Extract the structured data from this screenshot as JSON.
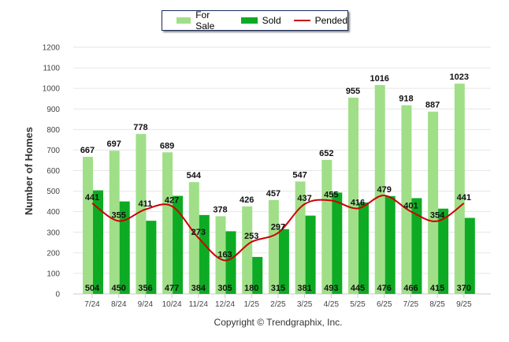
{
  "chart_data": {
    "type": "bar",
    "ylabel": "Number of Homes",
    "xlabel": "",
    "ylim": [
      0,
      1200
    ],
    "yticks": [
      0,
      100,
      200,
      300,
      400,
      500,
      600,
      700,
      800,
      900,
      1000,
      1100,
      1200
    ],
    "grid": true,
    "legend_position": "top-center",
    "categories": [
      "7/24",
      "8/24",
      "9/24",
      "10/24",
      "11/24",
      "12/24",
      "1/25",
      "2/25",
      "3/25",
      "4/25",
      "5/25",
      "6/25",
      "7/25",
      "8/25",
      "9/25"
    ],
    "series": [
      {
        "name": "For Sale",
        "type": "bar",
        "color": "#a0df88",
        "values": [
          667,
          697,
          778,
          689,
          544,
          378,
          426,
          457,
          547,
          652,
          955,
          1016,
          918,
          887,
          1023
        ]
      },
      {
        "name": "Sold",
        "type": "bar",
        "color": "#0dab23",
        "values": [
          504,
          450,
          356,
          477,
          384,
          305,
          180,
          315,
          381,
          493,
          445,
          476,
          466,
          415,
          370
        ]
      },
      {
        "name": "Pended",
        "type": "line",
        "color": "#cc0000",
        "values": [
          441,
          355,
          411,
          427,
          273,
          163,
          253,
          297,
          437,
          455,
          416,
          479,
          401,
          354,
          441
        ]
      }
    ]
  },
  "footer": {
    "copyright": "Copyright © Trendgraphix, Inc."
  }
}
